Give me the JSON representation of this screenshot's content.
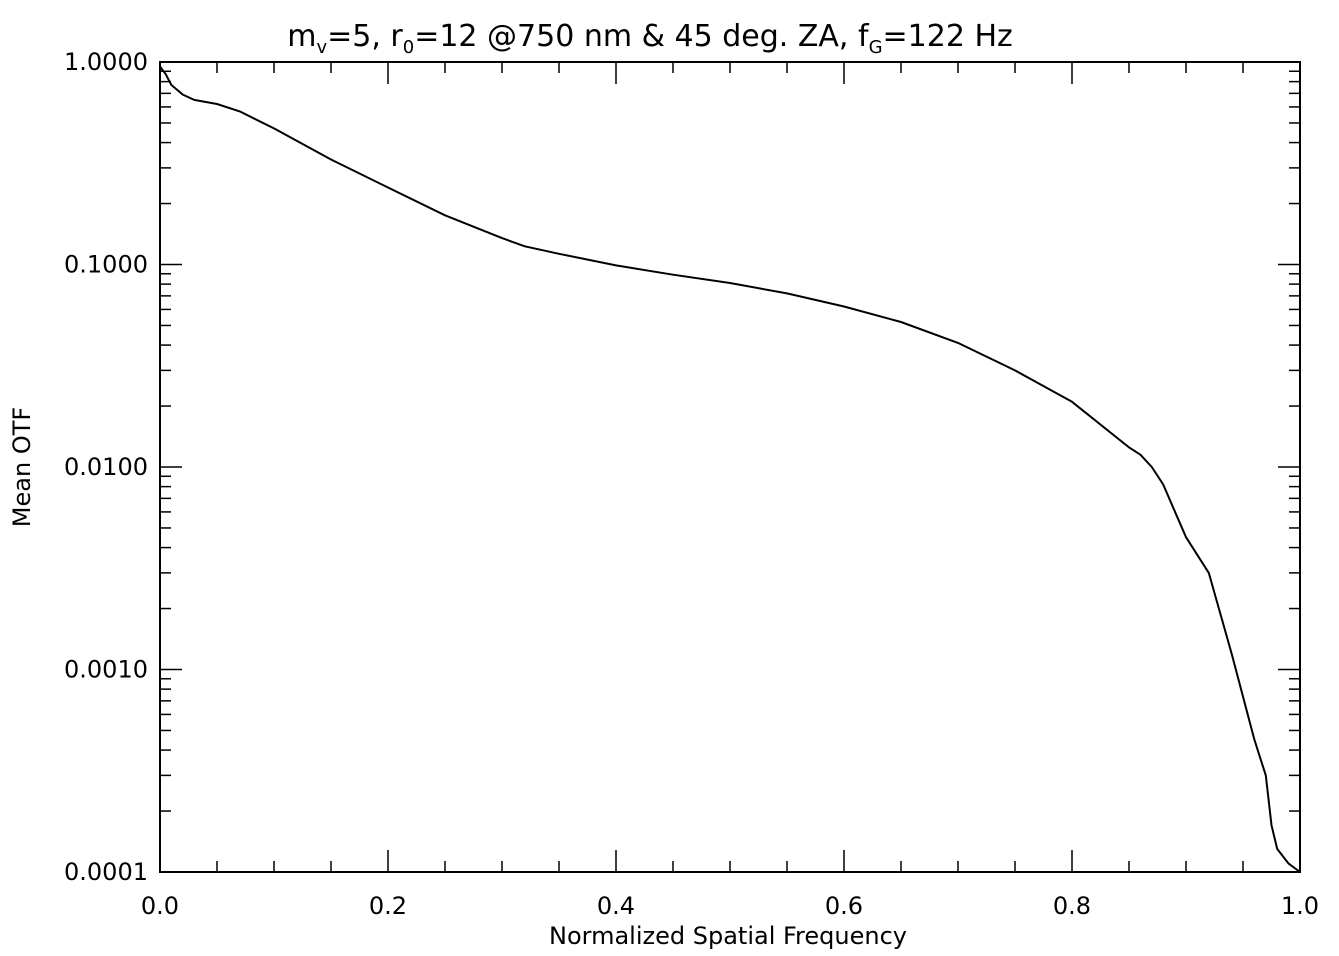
{
  "chart_data": {
    "type": "line",
    "title_parts": {
      "m": "m",
      "m_sub": "v",
      "eq1": "=5, ",
      "r": "r",
      "r_sub": "0",
      "eq2": "=12 @750 nm & 45 deg. ZA, ",
      "f": "f",
      "f_sub": "G",
      "eq3": "=122 Hz"
    },
    "xlabel": "Normalized Spatial Frequency",
    "ylabel": "Mean OTF",
    "xlim": [
      0.0,
      1.0
    ],
    "ylim": [
      0.0001,
      1.0
    ],
    "yscale": "log",
    "grid": false,
    "x_ticks": [
      "0.0",
      "0.2",
      "0.4",
      "0.6",
      "0.8",
      "1.0"
    ],
    "x_tick_values": [
      0.0,
      0.2,
      0.4,
      0.6,
      0.8,
      1.0
    ],
    "y_ticks": [
      "1.0000",
      "0.1000",
      "0.0100",
      "0.0010",
      "0.0001"
    ],
    "y_tick_values": [
      1.0,
      0.1,
      0.01,
      0.001,
      0.0001
    ],
    "series": [
      {
        "x": [
          0.0,
          0.005,
          0.01,
          0.02,
          0.03,
          0.05,
          0.07,
          0.1,
          0.15,
          0.2,
          0.25,
          0.3,
          0.32,
          0.35,
          0.4,
          0.45,
          0.5,
          0.55,
          0.6,
          0.65,
          0.7,
          0.75,
          0.8,
          0.85,
          0.86,
          0.87,
          0.88,
          0.9,
          0.92,
          0.94,
          0.96,
          0.97,
          0.975,
          0.98,
          0.99,
          1.0
        ],
        "y": [
          0.95,
          0.87,
          0.77,
          0.69,
          0.65,
          0.62,
          0.57,
          0.47,
          0.33,
          0.24,
          0.175,
          0.135,
          0.123,
          0.113,
          0.099,
          0.089,
          0.081,
          0.072,
          0.062,
          0.052,
          0.041,
          0.03,
          0.021,
          0.0125,
          0.0115,
          0.01,
          0.0082,
          0.0045,
          0.003,
          0.0012,
          0.00045,
          0.0003,
          0.00017,
          0.00013,
          0.00011,
          0.0001
        ]
      }
    ]
  }
}
